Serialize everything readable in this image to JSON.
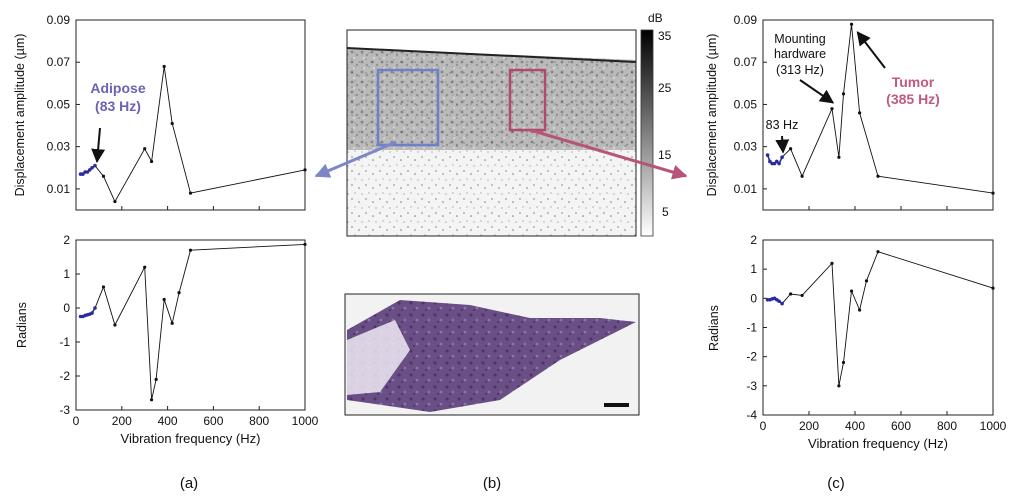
{
  "colors": {
    "adipose_annotation": "#6a62b4",
    "tumor_annotation": "#c25a7a",
    "adipose_box": "#6f7fc8",
    "tumor_box": "#b04a6e",
    "left_arrow": "#7d86c6",
    "right_arrow": "#b6547a",
    "low_freq_markers": "#2a2aa0",
    "line": "#111111"
  },
  "panel_labels": {
    "a": "(a)",
    "b": "(b)",
    "c": "(c)"
  },
  "colorbar": {
    "unit": "dB",
    "ticks": [
      "35",
      "25",
      "15",
      "5"
    ]
  },
  "chart_data": [
    {
      "id": "a-amplitude",
      "type": "line",
      "ylabel": "Displacement amplitude (µm)",
      "xlim": [
        0,
        1000
      ],
      "ylim": [
        0,
        0.09
      ],
      "yticks": [
        0.01,
        0.03,
        0.05,
        0.07,
        0.09
      ],
      "yticklabels": [
        "0.01",
        "0.03",
        "0.05",
        "0.07",
        "0.09"
      ],
      "xtick_labels_visible": false,
      "x": [
        20,
        30,
        40,
        50,
        60,
        70,
        83,
        120,
        170,
        300,
        330,
        385,
        420,
        500,
        1000
      ],
      "y": [
        0.017,
        0.017,
        0.018,
        0.018,
        0.019,
        0.02,
        0.021,
        0.016,
        0.004,
        0.029,
        0.023,
        0.068,
        0.041,
        0.008,
        0.019
      ],
      "annotations": [
        {
          "label_line1": "Adipose",
          "label_line2": "(83 Hz)",
          "x": 83,
          "y": 0.021
        }
      ]
    },
    {
      "id": "a-phase",
      "type": "line",
      "ylabel": "Radians",
      "xlabel": "Vibration frequency (Hz)",
      "xlim": [
        0,
        1000
      ],
      "ylim": [
        -3,
        2
      ],
      "xticks": [
        0,
        200,
        400,
        600,
        800,
        1000
      ],
      "xticklabels": [
        "0",
        "200",
        "400",
        "600",
        "800",
        "1000"
      ],
      "yticks": [
        -3,
        -2,
        -1,
        0,
        1,
        2
      ],
      "yticklabels": [
        "-3",
        "-2",
        "-1",
        "0",
        "1",
        "2"
      ],
      "x": [
        20,
        30,
        40,
        50,
        60,
        70,
        83,
        120,
        170,
        300,
        330,
        350,
        385,
        420,
        450,
        500,
        1000
      ],
      "y": [
        -0.25,
        -0.25,
        -0.22,
        -0.2,
        -0.18,
        -0.15,
        0.0,
        0.62,
        -0.5,
        1.2,
        -2.7,
        -2.1,
        0.25,
        -0.45,
        0.45,
        1.7,
        1.87
      ]
    },
    {
      "id": "c-amplitude",
      "type": "line",
      "ylabel": "Displacement amplitude (µm)",
      "xlim": [
        0,
        1000
      ],
      "ylim": [
        0,
        0.09
      ],
      "yticks": [
        0.01,
        0.03,
        0.05,
        0.07,
        0.09
      ],
      "yticklabels": [
        "0.01",
        "0.03",
        "0.05",
        "0.07",
        "0.09"
      ],
      "xtick_labels_visible": false,
      "x": [
        20,
        30,
        40,
        50,
        60,
        70,
        83,
        120,
        170,
        300,
        330,
        350,
        385,
        420,
        500,
        1000
      ],
      "y": [
        0.026,
        0.023,
        0.022,
        0.022,
        0.023,
        0.022,
        0.025,
        0.029,
        0.016,
        0.048,
        0.025,
        0.055,
        0.088,
        0.046,
        0.016,
        0.008
      ],
      "annotations": [
        {
          "label_line1": "83 Hz",
          "x": 83,
          "y": 0.025
        },
        {
          "label_line1": "Mounting",
          "label_line2": "hardware",
          "label_line3": "(313 Hz)",
          "x": 313,
          "y": 0.048
        },
        {
          "label_line1": "Tumor",
          "label_line2": "(385 Hz)",
          "x": 385,
          "y": 0.088
        }
      ]
    },
    {
      "id": "c-phase",
      "type": "line",
      "ylabel": "Radians",
      "xlabel": "Vibration frequency (Hz)",
      "xlim": [
        0,
        1000
      ],
      "ylim": [
        -4,
        2
      ],
      "xticks": [
        0,
        200,
        400,
        600,
        800,
        1000
      ],
      "xticklabels": [
        "0",
        "200",
        "400",
        "600",
        "800",
        "1000"
      ],
      "yticks": [
        -4,
        -3,
        -2,
        -1,
        0,
        1,
        2
      ],
      "yticklabels": [
        "-4",
        "-3",
        "-2",
        "-1",
        "0",
        "1",
        "2"
      ],
      "x": [
        20,
        30,
        40,
        50,
        60,
        70,
        83,
        120,
        170,
        300,
        330,
        350,
        385,
        420,
        450,
        500,
        1000
      ],
      "y": [
        -0.05,
        -0.05,
        -0.02,
        0.0,
        -0.05,
        -0.1,
        -0.18,
        0.15,
        0.1,
        1.2,
        -3.0,
        -2.2,
        0.25,
        -0.4,
        0.6,
        1.6,
        0.35
      ]
    }
  ]
}
